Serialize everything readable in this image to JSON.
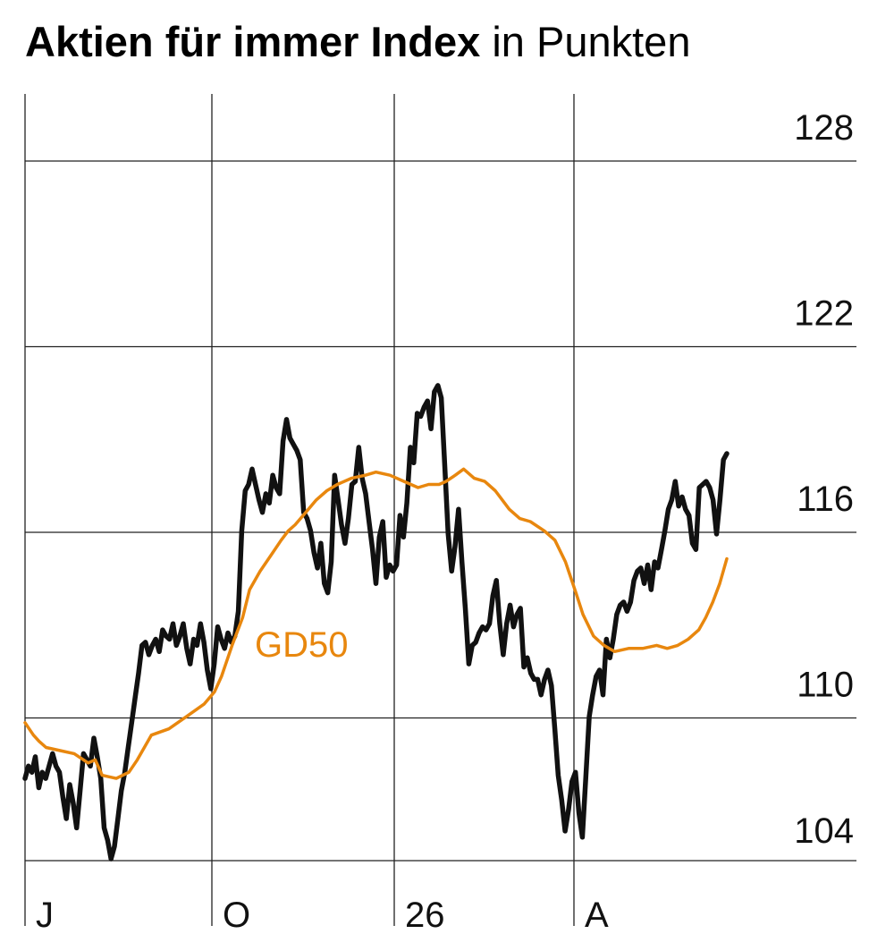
{
  "chart_data": {
    "type": "line",
    "title": "Aktien für immer Index",
    "subtitle": "in Punkten",
    "xlabel": "",
    "ylabel": "",
    "ylim": [
      104,
      128
    ],
    "y_ticks": [
      104,
      110,
      116,
      122,
      128
    ],
    "x_ticks": [
      "J",
      "O",
      "26",
      "A"
    ],
    "x_range": [
      "J",
      "A"
    ],
    "grid": true,
    "colors": {
      "index": "#111111",
      "gd50": "#e8870e",
      "grid": "#222222"
    },
    "series": [
      {
        "key": "index",
        "values": [
          106.6,
          107.0,
          106.8,
          107.3,
          106.3,
          106.8,
          106.6,
          107.0,
          107.4,
          107.0,
          106.8,
          106.0,
          105.3,
          106.4,
          105.8,
          105.0,
          106.2,
          107.4,
          107.2,
          107.0,
          107.9,
          107.3,
          106.6,
          105.0,
          104.6,
          104.0,
          104.4,
          105.3,
          106.2,
          106.8,
          107.6,
          108.4,
          109.2,
          110.0,
          110.9,
          111.0,
          110.6,
          110.9,
          111.1,
          110.7,
          111.4,
          111.2,
          111.1,
          111.6,
          110.9,
          111.2,
          111.6,
          110.8,
          110.3,
          111.1,
          110.9,
          111.6,
          111.0,
          110.1,
          109.5,
          110.3,
          111.5,
          111.1,
          110.8,
          111.3,
          111.0,
          111.2,
          112.0,
          114.6,
          115.9,
          116.1,
          116.6,
          116.1,
          115.6,
          115.2,
          115.8,
          115.5,
          116.4,
          116.0,
          115.8,
          117.5,
          118.2,
          117.6,
          117.4,
          117.2,
          116.9,
          115.2,
          115.0,
          114.6,
          113.9,
          113.4,
          114.2,
          112.9,
          112.6,
          113.6,
          116.4,
          115.6,
          114.8,
          114.2,
          115.0,
          116.1,
          116.2,
          117.3,
          116.3,
          115.8,
          114.9,
          114.0,
          112.9,
          114.4,
          114.9,
          113.1,
          113.5,
          113.3,
          113.5,
          115.1,
          114.4,
          115.5,
          117.3,
          116.8,
          118.4,
          118.3,
          118.6,
          118.8,
          117.9,
          119.1,
          119.3,
          118.9,
          116.7,
          114.5,
          113.3,
          114.1,
          115.3,
          113.6,
          112.1,
          110.3,
          110.9,
          111.0,
          111.3,
          111.5,
          111.4,
          111.6,
          112.5,
          113.0,
          111.6,
          110.6,
          111.6,
          112.2,
          111.5,
          111.9,
          112.1,
          110.2,
          110.5,
          110.0,
          109.8,
          109.8,
          109.3,
          109.8,
          110.1,
          109.6,
          108.2,
          106.7,
          105.9,
          104.9,
          105.6,
          106.5,
          106.8,
          105.5,
          104.7,
          106.6,
          108.6,
          109.3,
          109.9,
          110.1,
          109.3,
          111.1,
          110.5,
          111.1,
          111.9,
          112.2,
          112.3,
          112.0,
          112.3,
          113.0,
          113.3,
          113.4,
          112.9,
          113.5,
          112.7,
          113.6,
          113.4,
          114.0,
          114.6,
          115.3,
          115.6,
          116.2,
          115.4,
          115.7,
          115.3,
          115.1,
          114.2,
          114.0,
          116.0,
          116.1,
          116.2,
          116.0,
          115.6,
          114.5,
          115.6,
          116.9,
          117.1
        ]
      },
      {
        "key": "gd50",
        "name": "GD50",
        "values": [
          108.4,
          108.0,
          107.8,
          107.6,
          107.5,
          107.4,
          107.1,
          107.2,
          106.7,
          106.6,
          106.8,
          107.2,
          108.0,
          108.2,
          108.6,
          109.0,
          109.4,
          109.9,
          110.9,
          111.8,
          112.7,
          113.3,
          113.8,
          114.3,
          114.6,
          114.8,
          115.2,
          115.6,
          115.9,
          116.1,
          116.3,
          116.4,
          116.5,
          116.4,
          116.2,
          116.0,
          116.1,
          116.1,
          116.2,
          116.4,
          116.6,
          116.3,
          116.2,
          115.9,
          115.6,
          115.3,
          115.0,
          114.9,
          114.6,
          114.3,
          113.6,
          112.6,
          111.9,
          111.2,
          110.9,
          110.7,
          110.8,
          110.8,
          110.9,
          110.8,
          110.9,
          111.1,
          111.4,
          111.8,
          112.3,
          112.9,
          113.7
        ],
        "x_positions": [
          0.0,
          0.012,
          0.02,
          0.03,
          0.05,
          0.07,
          0.09,
          0.1,
          0.11,
          0.13,
          0.148,
          0.16,
          0.18,
          0.205,
          0.23,
          0.255,
          0.27,
          0.28,
          0.295,
          0.31,
          0.32,
          0.335,
          0.35,
          0.365,
          0.375,
          0.385,
          0.4,
          0.415,
          0.43,
          0.445,
          0.465,
          0.485,
          0.5,
          0.52,
          0.54,
          0.56,
          0.575,
          0.59,
          0.6,
          0.613,
          0.625,
          0.64,
          0.655,
          0.67,
          0.68,
          0.69,
          0.705,
          0.72,
          0.74,
          0.755,
          0.77,
          0.785,
          0.795,
          0.81,
          0.825,
          0.84,
          0.86,
          0.88,
          0.9,
          0.915,
          0.93,
          0.945,
          0.96,
          0.97,
          0.98,
          0.99,
          1.0
        ]
      }
    ]
  }
}
